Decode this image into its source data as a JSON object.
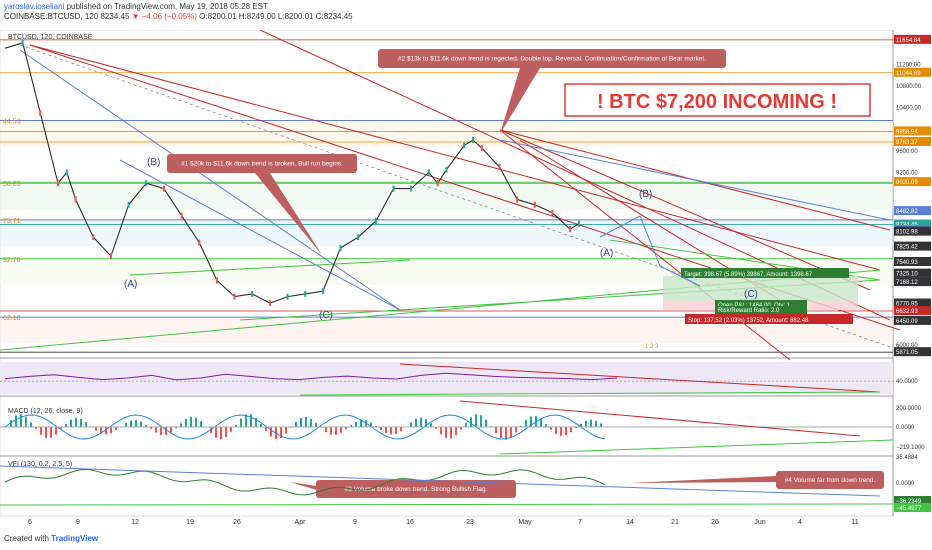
{
  "header": {
    "author": "yaroslav.ioseliani",
    "published": "published on TradingView.com, May 19, 2018 05:28 EST",
    "symbol_line": "COINBASE:BTCUSD, 120",
    "last_price": "8234.45",
    "change": "▼ −4.06 (−0.05%)",
    "ohlc": "O:8200.01 H:8249.00 L:8200.01 C:8234.45"
  },
  "footer": {
    "created_with": "Created with",
    "brand": "TradingView"
  },
  "colors": {
    "up": "#26a69a",
    "down": "#ef5350",
    "trend_red": "#c62828",
    "trend_green": "#43c443",
    "trend_blue": "#5c7fd6",
    "fib_orange": "#e68a00",
    "annotation_bg": "#bd5f5f",
    "headline_red": "#e53935"
  },
  "chart_data": [
    {
      "type": "line",
      "title": "BTCUSD, 120, COINBASE",
      "x_ticks": [
        "6",
        "9",
        "12",
        "19",
        "26",
        "Apr",
        "9",
        "16",
        "23",
        "May",
        "7",
        "14",
        "21",
        "26",
        "Jun",
        "4",
        "11",
        "18"
      ],
      "ylim": [
        5800,
        11800
      ],
      "fib_levels": [
        {
          "label": "44.53",
          "price": 10160
        },
        {
          "label": "58.65",
          "price": 9000
        },
        {
          "label": "75.71",
          "price": 8320
        },
        {
          "label": "92.76",
          "price": 7600
        },
        {
          "label": "62.18",
          "price": 6520
        }
      ],
      "price_labels": [
        {
          "text": "11654.84",
          "price": 11654.84,
          "color": "#c62828"
        },
        {
          "text": "11200.00",
          "price": 11200,
          "color": ""
        },
        {
          "text": "11044.69",
          "price": 11044.69,
          "color": "#e68a00"
        },
        {
          "text": "10800.00",
          "price": 10800,
          "color": ""
        },
        {
          "text": "10400.00",
          "price": 10400,
          "color": ""
        },
        {
          "text": "9958.94",
          "price": 9958.94,
          "color": "#e68a00"
        },
        {
          "text": "9763.37",
          "price": 9763.37,
          "color": "#e68a00"
        },
        {
          "text": "9600.00",
          "price": 9600,
          "color": ""
        },
        {
          "text": "9200.00",
          "price": 9200,
          "color": ""
        },
        {
          "text": "9020.09",
          "price": 9020.09,
          "color": "#e68a00"
        },
        {
          "text": "8482.82",
          "price": 8482.82,
          "color": "#5c7fd6"
        },
        {
          "text": "8234.45",
          "price": 8234.45,
          "color": "#26a69a"
        },
        {
          "text": "8131.22",
          "price": 8131.22,
          "color": "#5c7fd6"
        },
        {
          "text": "8102.98",
          "price": 8102.98,
          "color": "#333333"
        },
        {
          "text": "7825.42",
          "price": 7825.42,
          "color": "#333333"
        },
        {
          "text": "7540.93",
          "price": 7540.93,
          "color": "#333333"
        },
        {
          "text": "7325.10",
          "price": 7325.1,
          "color": "#333333"
        },
        {
          "text": "7172.28",
          "price": 7172.28,
          "color": "#5c7fd6"
        },
        {
          "text": "7168.12",
          "price": 7168.12,
          "color": "#333333"
        },
        {
          "text": "6770.45",
          "price": 6770.45,
          "color": "#333333"
        },
        {
          "text": "6770.95",
          "price": 6770.95,
          "color": "#333333"
        },
        {
          "text": "6632.93",
          "price": 6632.93,
          "color": "#c62828"
        },
        {
          "text": "6450.09",
          "price": 6450.09,
          "color": "#333333"
        },
        {
          "text": "6000.00",
          "price": 6000,
          "color": ""
        },
        {
          "text": "5871.05",
          "price": 5871.05,
          "color": "#333333"
        }
      ],
      "price_path": [
        [
          0,
          11500
        ],
        [
          2,
          11600
        ],
        [
          4,
          10300
        ],
        [
          6,
          9000
        ],
        [
          7,
          9200
        ],
        [
          8,
          8700
        ],
        [
          10,
          8000
        ],
        [
          12,
          7650
        ],
        [
          14,
          8600
        ],
        [
          16,
          9000
        ],
        [
          18,
          8900
        ],
        [
          20,
          8400
        ],
        [
          22,
          7900
        ],
        [
          24,
          7200
        ],
        [
          26,
          6900
        ],
        [
          28,
          6950
        ],
        [
          30,
          6780
        ],
        [
          32,
          6900
        ],
        [
          34,
          6950
        ],
        [
          36,
          7000
        ],
        [
          38,
          7800
        ],
        [
          40,
          8000
        ],
        [
          42,
          8300
        ],
        [
          44,
          8900
        ],
        [
          46,
          8900
        ],
        [
          48,
          9200
        ],
        [
          49,
          9000
        ],
        [
          50,
          9250
        ],
        [
          52,
          9700
        ],
        [
          53,
          9800
        ],
        [
          54,
          9650
        ],
        [
          56,
          9300
        ],
        [
          58,
          8700
        ],
        [
          60,
          8600
        ],
        [
          62,
          8450
        ],
        [
          64,
          8150
        ],
        [
          65,
          8250
        ]
      ],
      "wave_labels": [
        "(A)",
        "(B)",
        "(C)",
        "(B)",
        "(A)",
        "(C)"
      ],
      "headline": "! BTC $7,200 INCOMING !",
      "annotations": [
        "#2 $13k to $11.6k down trend is regected. Double top. Reversal. Continuation/Confirmation of Bear market.",
        "#1 $20k to $11.6k down trend is broken. Bull run begins."
      ],
      "position_tool": {
        "target": "Target: 398.67 (5.89%) 39867, Amount: 1398.67",
        "open_pl": "Open P&L: 1464.00, Qty: 1",
        "risk_reward": "Risk/Reward Ratio: 2.0",
        "stop": "Stop: 137.52 (2.03%) 13752, Amount: 862.48"
      },
      "corner_badge": "1 2 3"
    },
    {
      "type": "line",
      "title": "RSI (14, close)",
      "ylim": [
        0,
        100
      ],
      "price_labels": [
        {
          "text": "40.0000",
          "value": 40
        }
      ],
      "values": [
        48,
        55,
        60,
        52,
        45,
        50,
        58,
        44,
        50,
        62,
        55,
        48,
        45,
        52,
        56,
        50,
        47,
        58,
        65,
        60,
        55,
        52,
        50,
        48,
        45,
        50
      ]
    },
    {
      "type": "line",
      "title": "MACD (12, 26, close, 9)",
      "price_labels": [
        {
          "text": "200.0000",
          "value": 200
        },
        {
          "text": "0.0000",
          "value": 0
        },
        {
          "text": "−219.1000",
          "value": -219.1
        },
        {
          "text": "35.4884",
          "value": 35.4884
        }
      ]
    },
    {
      "type": "line",
      "title": "VFI (130, 0.2, 2.5, 5)",
      "price_labels": [
        {
          "text": "0.0000",
          "value": 0
        },
        {
          "text": "−36.2349",
          "value": -36.2349
        },
        {
          "text": "−45.4977",
          "value": -45.4977
        }
      ],
      "annotations": [
        "#3 Volume broke down trend. Strong Bullish Flag.",
        "#4 Volume far from down trend."
      ]
    }
  ]
}
